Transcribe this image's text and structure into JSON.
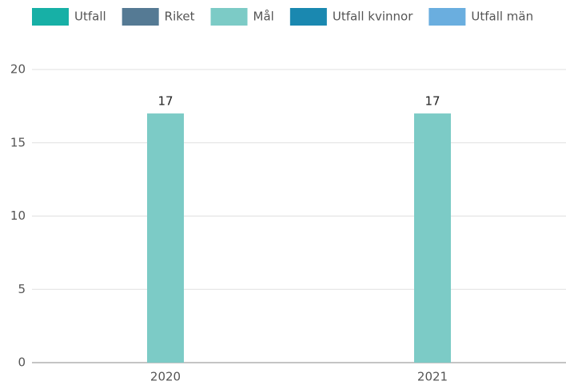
{
  "chart_data": {
    "type": "bar",
    "categories": [
      "2020",
      "2021"
    ],
    "series": [
      {
        "name": "Utfall",
        "color": "#17b0a6",
        "values": [
          null,
          null
        ]
      },
      {
        "name": "Riket",
        "color": "#557a94",
        "values": [
          null,
          null
        ]
      },
      {
        "name": "Mål",
        "color": "#7ccbc6",
        "values": [
          17,
          17
        ]
      },
      {
        "name": "Utfall kvinnor",
        "color": "#1a88b0",
        "values": [
          null,
          null
        ]
      },
      {
        "name": "Utfall män",
        "color": "#6aaedf",
        "values": [
          null,
          null
        ]
      }
    ],
    "ylim": [
      0,
      20
    ],
    "yticks": [
      0,
      5,
      10,
      15,
      20
    ],
    "grid": true,
    "legend": "top"
  }
}
